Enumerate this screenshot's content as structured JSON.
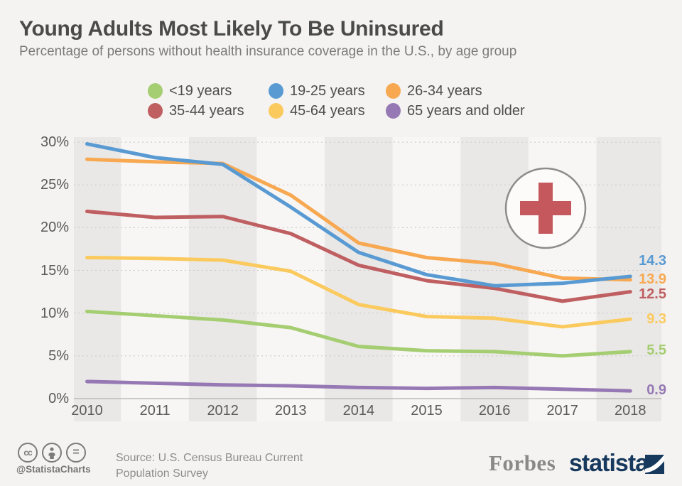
{
  "header": {
    "title": "Young Adults Most Likely To Be Uninsured",
    "subtitle": "Percentage of persons without health insurance coverage in the U.S., by age group"
  },
  "chart_data": {
    "type": "line",
    "x": [
      "2010",
      "2011",
      "2012",
      "2013",
      "2014",
      "2015",
      "2016",
      "2017",
      "2018"
    ],
    "series": [
      {
        "name": "<19 years",
        "color": "#a5cd71",
        "values": [
          10.2,
          9.7,
          9.2,
          8.3,
          6.1,
          5.6,
          5.5,
          5.0,
          5.5
        ],
        "end_label": "5.5"
      },
      {
        "name": "19-25 years",
        "color": "#599ad3",
        "values": [
          29.8,
          28.2,
          27.4,
          22.4,
          17.1,
          14.5,
          13.2,
          13.5,
          14.3
        ],
        "end_label": "14.3"
      },
      {
        "name": "26-34 years",
        "color": "#f7a851",
        "values": [
          28.0,
          27.7,
          27.5,
          23.8,
          18.2,
          16.5,
          15.8,
          14.1,
          13.9
        ],
        "end_label": "13.9"
      },
      {
        "name": "35-44 years",
        "color": "#bf5f62",
        "values": [
          21.9,
          21.2,
          21.3,
          19.3,
          15.6,
          13.8,
          12.9,
          11.4,
          12.5
        ],
        "end_label": "12.5"
      },
      {
        "name": "45-64 years",
        "color": "#fbca5f",
        "values": [
          16.5,
          16.4,
          16.2,
          14.9,
          11.0,
          9.6,
          9.4,
          8.4,
          9.3
        ],
        "end_label": "9.3"
      },
      {
        "name": "65 years and older",
        "color": "#9679b4",
        "values": [
          2.0,
          1.8,
          1.6,
          1.5,
          1.3,
          1.2,
          1.3,
          1.1,
          0.9
        ],
        "end_label": "0.9"
      }
    ],
    "ylim": [
      0,
      30
    ],
    "y_ticks": [
      "30%",
      "25%",
      "20%",
      "15%",
      "10%",
      "5%",
      "0%"
    ],
    "grid": "horizontal-dotted",
    "legend_position": "top",
    "annotation_icon": "medical-cross",
    "band_colors": {
      "dark": "#e9e8e6",
      "light": "#f7f6f4"
    }
  },
  "footer": {
    "cc_label": "cc",
    "nd_label": "=",
    "handle": "@StatistaCharts",
    "source_line1": "Source: U.S. Census Bureau Current",
    "source_line2": "Population Survey",
    "forbes": "Forbes",
    "statista": "statista"
  }
}
